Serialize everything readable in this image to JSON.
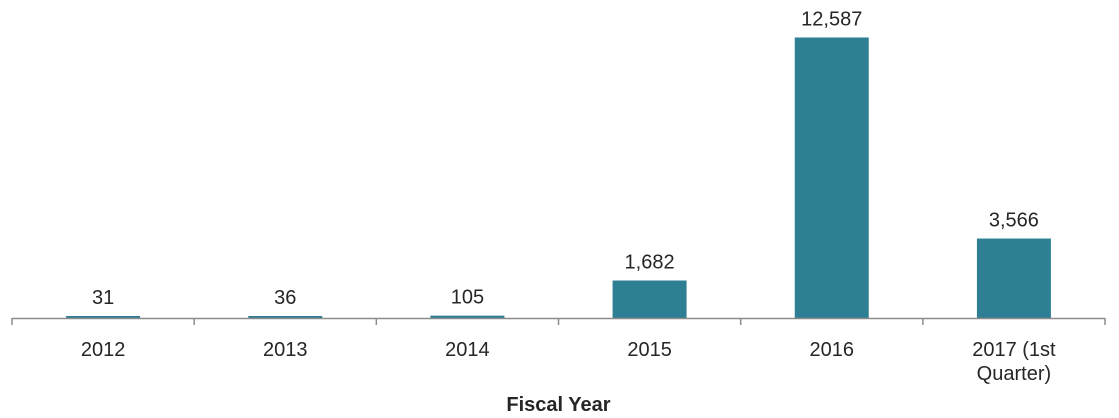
{
  "chart_data": {
    "type": "bar",
    "categories": [
      "2012",
      "2013",
      "2014",
      "2015",
      "2016",
      "2017 (1st Quarter)"
    ],
    "category_lines": [
      [
        "2012"
      ],
      [
        "2013"
      ],
      [
        "2014"
      ],
      [
        "2015"
      ],
      [
        "2016"
      ],
      [
        "2017 (1st",
        "Quarter)"
      ]
    ],
    "values": [
      31,
      36,
      105,
      1682,
      12587,
      3566
    ],
    "value_labels": [
      "31",
      "36",
      "105",
      "1,682",
      "12,587",
      "3,566"
    ],
    "title": "",
    "xlabel": "Fiscal Year",
    "ylabel": "",
    "ylim": [
      0,
      14000
    ],
    "grid": false,
    "legend": "none",
    "bar_color": "#2e7f94",
    "axis_color": "#8c8c8c",
    "text_color": "#262626"
  }
}
